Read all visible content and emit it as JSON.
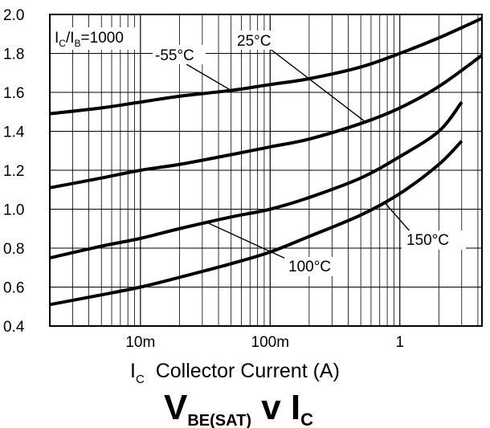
{
  "chart_data": {
    "type": "line",
    "xscale": "log",
    "xlim": [
      0.002,
      4.3
    ],
    "ylim": [
      0.4,
      2.0
    ],
    "grid": true,
    "x_tick_labels": [
      {
        "x": 0.01,
        "label": "10m"
      },
      {
        "x": 0.1,
        "label": "100m"
      },
      {
        "x": 1,
        "label": "1"
      }
    ],
    "y_ticks": [
      0.4,
      0.6,
      0.8,
      1.0,
      1.2,
      1.4,
      1.6,
      1.8,
      2.0
    ],
    "y_tick_labels": [
      "0.4",
      "0.6",
      "0.8",
      "1.0",
      "1.2",
      "1.4",
      "1.6",
      "1.8",
      "2.0"
    ],
    "xlabel": {
      "main": "I",
      "sub": "C",
      "rest": "  Collector Current (A)"
    },
    "title": {
      "v": "V",
      "vsub": "BE(SAT)",
      "mid": " v I",
      "isub": "C"
    },
    "condition": {
      "a": "I",
      "asub": "C",
      "slash": "/I",
      "bsub": "B",
      "rest": "=1000"
    },
    "series": [
      {
        "name": "-55°C",
        "label": "-55°C",
        "x": [
          0.002,
          0.005,
          0.01,
          0.02,
          0.05,
          0.1,
          0.2,
          0.5,
          1,
          2,
          4.3
        ],
        "y": [
          1.49,
          1.52,
          1.55,
          1.58,
          1.61,
          1.64,
          1.67,
          1.73,
          1.8,
          1.88,
          1.98
        ]
      },
      {
        "name": "25°C",
        "label": "25°C",
        "x": [
          0.002,
          0.005,
          0.01,
          0.02,
          0.05,
          0.1,
          0.2,
          0.5,
          1,
          2,
          4.3
        ],
        "y": [
          1.11,
          1.16,
          1.2,
          1.23,
          1.28,
          1.32,
          1.36,
          1.44,
          1.52,
          1.63,
          1.79
        ]
      },
      {
        "name": "100°C",
        "label": "100°C",
        "x": [
          0.002,
          0.005,
          0.01,
          0.02,
          0.05,
          0.1,
          0.2,
          0.5,
          1,
          2,
          3
        ],
        "y": [
          0.75,
          0.81,
          0.85,
          0.9,
          0.96,
          1.0,
          1.06,
          1.16,
          1.27,
          1.4,
          1.55
        ]
      },
      {
        "name": "150°C",
        "label": "150°C",
        "x": [
          0.002,
          0.005,
          0.01,
          0.02,
          0.05,
          0.1,
          0.2,
          0.5,
          1,
          2,
          3
        ],
        "y": [
          0.51,
          0.56,
          0.6,
          0.65,
          0.72,
          0.78,
          0.86,
          0.97,
          1.08,
          1.23,
          1.35
        ]
      }
    ]
  }
}
